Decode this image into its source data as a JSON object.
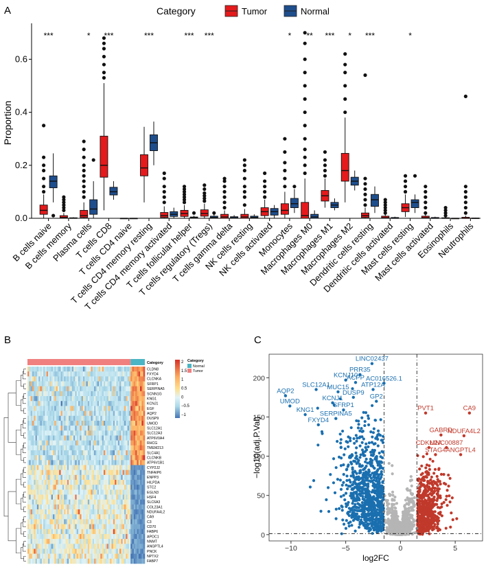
{
  "chart_data": [
    {
      "panel": "A",
      "type": "box",
      "ylabel": "Proportion",
      "ylim": [
        0,
        0.72
      ],
      "yticks": [
        0.0,
        0.2,
        0.4,
        0.6
      ],
      "yticklabels": [
        "0.0",
        "0.2",
        "0.4",
        "0.6"
      ],
      "legend_title": "Category",
      "legend": [
        {
          "name": "Tumor",
          "color": "#e41a1c"
        },
        {
          "name": "Normal",
          "color": "#1f4e8c"
        }
      ],
      "categories": [
        {
          "name": "B cells naive",
          "sig": "***",
          "tumor": {
            "q1": 0.015,
            "med": 0.03,
            "q3": 0.05,
            "lo": 0.0,
            "hi": 0.09,
            "out": [
              0.1,
              0.12,
              0.15,
              0.18,
              0.2,
              0.23,
              0.35
            ]
          },
          "normal": {
            "q1": 0.115,
            "med": 0.14,
            "q3": 0.16,
            "lo": 0.06,
            "hi": 0.245,
            "out": [
              0.01
            ]
          }
        },
        {
          "name": "B cells memory",
          "sig": "",
          "tumor": {
            "q1": 0.0,
            "med": 0.003,
            "q3": 0.01,
            "lo": 0.0,
            "hi": 0.02,
            "out": [
              0.03,
              0.04,
              0.05,
              0.06,
              0.07,
              0.08
            ]
          },
          "normal": {
            "q1": 0.0,
            "med": 0.0,
            "q3": 0.002,
            "lo": 0.0,
            "hi": 0.004,
            "out": []
          }
        },
        {
          "name": "Plasma cells",
          "sig": "*",
          "tumor": {
            "q1": 0.003,
            "med": 0.01,
            "q3": 0.03,
            "lo": 0.0,
            "hi": 0.06,
            "out": [
              0.08,
              0.1,
              0.12,
              0.14,
              0.16,
              0.18,
              0.2,
              0.23,
              0.26,
              0.29
            ]
          },
          "normal": {
            "q1": 0.015,
            "med": 0.035,
            "q3": 0.07,
            "lo": 0.0,
            "hi": 0.14,
            "out": [
              0.22
            ]
          }
        },
        {
          "name": "T cells CD8",
          "sig": "***",
          "tumor": {
            "q1": 0.155,
            "med": 0.2,
            "q3": 0.31,
            "lo": 0.03,
            "hi": 0.51,
            "out": [
              0.53,
              0.55,
              0.58,
              0.61,
              0.64,
              0.66,
              0.68
            ]
          },
          "normal": {
            "q1": 0.088,
            "med": 0.1,
            "q3": 0.117,
            "lo": 0.07,
            "hi": 0.14,
            "out": []
          }
        },
        {
          "name": "T cells CD4 naive",
          "sig": "",
          "tumor": {
            "q1": 0.0,
            "med": 0.0,
            "q3": 0.0,
            "lo": 0.0,
            "hi": 0.0,
            "out": []
          },
          "normal": {
            "q1": 0.0,
            "med": 0.0,
            "q3": 0.0,
            "lo": 0.0,
            "hi": 0.0,
            "out": []
          }
        },
        {
          "name": "T cells CD4 memory resting",
          "sig": "***",
          "tumor": {
            "q1": 0.16,
            "med": 0.19,
            "q3": 0.24,
            "lo": 0.06,
            "hi": 0.345,
            "out": []
          },
          "normal": {
            "q1": 0.255,
            "med": 0.285,
            "q3": 0.315,
            "lo": 0.2,
            "hi": 0.365,
            "out": []
          }
        },
        {
          "name": "T cells CD4 memory activated",
          "sig": "",
          "tumor": {
            "q1": 0.003,
            "med": 0.01,
            "q3": 0.022,
            "lo": 0.0,
            "hi": 0.045,
            "out": [
              0.06,
              0.08,
              0.1,
              0.12,
              0.15,
              0.17
            ]
          },
          "normal": {
            "q1": 0.007,
            "med": 0.015,
            "q3": 0.025,
            "lo": 0.0,
            "hi": 0.04,
            "out": []
          }
        },
        {
          "name": "T cells follicular helper",
          "sig": "***",
          "tumor": {
            "q1": 0.007,
            "med": 0.018,
            "q3": 0.03,
            "lo": 0.0,
            "hi": 0.05,
            "out": [
              0.06,
              0.07,
              0.08,
              0.09,
              0.1,
              0.11,
              0.12
            ]
          },
          "normal": {
            "q1": 0.0,
            "med": 0.002,
            "q3": 0.005,
            "lo": 0.0,
            "hi": 0.01,
            "out": [
              0.02
            ]
          }
        },
        {
          "name": "T cells regulatory (Tregs)",
          "sig": "***",
          "tumor": {
            "q1": 0.008,
            "med": 0.018,
            "q3": 0.032,
            "lo": 0.0,
            "hi": 0.055,
            "out": [
              0.065,
              0.075,
              0.085,
              0.095,
              0.11,
              0.125
            ]
          },
          "normal": {
            "q1": 0.0,
            "med": 0.003,
            "q3": 0.008,
            "lo": 0.0,
            "hi": 0.015,
            "out": [
              0.02
            ]
          }
        },
        {
          "name": "T cells gamma delta",
          "sig": "",
          "tumor": {
            "q1": 0.0,
            "med": 0.005,
            "q3": 0.015,
            "lo": 0.0,
            "hi": 0.03,
            "out": [
              0.04,
              0.06,
              0.08,
              0.1,
              0.12,
              0.14,
              0.15
            ]
          },
          "normal": {
            "q1": 0.0,
            "med": 0.002,
            "q3": 0.006,
            "lo": 0.0,
            "hi": 0.012,
            "out": []
          }
        },
        {
          "name": "NK cells resting",
          "sig": "",
          "tumor": {
            "q1": 0.0,
            "med": 0.005,
            "q3": 0.015,
            "lo": 0.0,
            "hi": 0.035,
            "out": [
              0.05,
              0.08,
              0.1,
              0.12,
              0.15,
              0.18,
              0.2,
              0.22
            ]
          },
          "normal": {
            "q1": 0.0,
            "med": 0.003,
            "q3": 0.008,
            "lo": 0.0,
            "hi": 0.015,
            "out": []
          }
        },
        {
          "name": "NK cells activated",
          "sig": "",
          "tumor": {
            "q1": 0.01,
            "med": 0.025,
            "q3": 0.04,
            "lo": 0.0,
            "hi": 0.07,
            "out": [
              0.08,
              0.1,
              0.12,
              0.14,
              0.17
            ]
          },
          "normal": {
            "q1": 0.012,
            "med": 0.025,
            "q3": 0.037,
            "lo": 0.0,
            "hi": 0.05,
            "out": []
          }
        },
        {
          "name": "Monocytes",
          "sig": "*",
          "tumor": {
            "q1": 0.015,
            "med": 0.03,
            "q3": 0.055,
            "lo": 0.0,
            "hi": 0.1,
            "out": [
              0.12,
              0.15,
              0.18,
              0.21,
              0.25,
              0.3
            ]
          },
          "normal": {
            "q1": 0.04,
            "med": 0.055,
            "q3": 0.075,
            "lo": 0.02,
            "hi": 0.11,
            "out": [
              0.12
            ]
          }
        },
        {
          "name": "Macrophages M0",
          "sig": "**",
          "tumor": {
            "q1": 0.0,
            "med": 0.01,
            "q3": 0.06,
            "lo": 0.0,
            "hi": 0.15,
            "out": [
              0.17,
              0.2,
              0.23,
              0.26,
              0.3,
              0.35,
              0.4,
              0.45,
              0.5,
              0.55,
              0.6,
              0.66,
              0.7
            ]
          },
          "normal": {
            "q1": 0.0,
            "med": 0.005,
            "q3": 0.015,
            "lo": 0.0,
            "hi": 0.03,
            "out": []
          }
        },
        {
          "name": "Macrophages M1",
          "sig": "***",
          "tumor": {
            "q1": 0.065,
            "med": 0.085,
            "q3": 0.105,
            "lo": 0.04,
            "hi": 0.15,
            "out": [
              0.16,
              0.18,
              0.2,
              0.22,
              0.25
            ]
          },
          "normal": {
            "q1": 0.04,
            "med": 0.05,
            "q3": 0.06,
            "lo": 0.03,
            "hi": 0.075,
            "out": []
          }
        },
        {
          "name": "Macrophages M2",
          "sig": "*",
          "tumor": {
            "q1": 0.14,
            "med": 0.18,
            "q3": 0.245,
            "lo": 0.06,
            "hi": 0.38,
            "out": [
              0.4,
              0.45,
              0.5,
              0.55,
              0.58,
              0.62
            ]
          },
          "normal": {
            "q1": 0.125,
            "med": 0.14,
            "q3": 0.155,
            "lo": 0.105,
            "hi": 0.18,
            "out": []
          }
        },
        {
          "name": "Dendritic cells resting",
          "sig": "***",
          "tumor": {
            "q1": 0.003,
            "med": 0.01,
            "q3": 0.02,
            "lo": 0.0,
            "hi": 0.04,
            "out": [
              0.05,
              0.07,
              0.09,
              0.11,
              0.13,
              0.15,
              0.54
            ]
          },
          "normal": {
            "q1": 0.045,
            "med": 0.07,
            "q3": 0.09,
            "lo": 0.02,
            "hi": 0.12,
            "out": []
          }
        },
        {
          "name": "Dendritic cells activated",
          "sig": "",
          "tumor": {
            "q1": 0.0,
            "med": 0.002,
            "q3": 0.008,
            "lo": 0.0,
            "hi": 0.015,
            "out": [
              0.02,
              0.03,
              0.04,
              0.05,
              0.06,
              0.07
            ]
          },
          "normal": {
            "q1": 0.0,
            "med": 0.0,
            "q3": 0.003,
            "lo": 0.0,
            "hi": 0.006,
            "out": []
          }
        },
        {
          "name": "Mast cells resting",
          "sig": "*",
          "tumor": {
            "q1": 0.025,
            "med": 0.04,
            "q3": 0.055,
            "lo": 0.005,
            "hi": 0.09,
            "out": [
              0.1,
              0.12,
              0.14,
              0.16
            ]
          },
          "normal": {
            "q1": 0.04,
            "med": 0.06,
            "q3": 0.07,
            "lo": 0.02,
            "hi": 0.09,
            "out": [
              0.16
            ]
          }
        },
        {
          "name": "Mast cells activated",
          "sig": "",
          "tumor": {
            "q1": 0.0,
            "med": 0.002,
            "q3": 0.008,
            "lo": 0.0,
            "hi": 0.015,
            "out": [
              0.02,
              0.04,
              0.06,
              0.08,
              0.1,
              0.12
            ]
          },
          "normal": {
            "q1": 0.0,
            "med": 0.0,
            "q3": 0.003,
            "lo": 0.0,
            "hi": 0.006,
            "out": []
          }
        },
        {
          "name": "Eosinophils",
          "sig": "",
          "tumor": {
            "q1": 0.0,
            "med": 0.0,
            "q3": 0.002,
            "lo": 0.0,
            "hi": 0.005,
            "out": [
              0.01,
              0.02,
              0.03,
              0.04
            ]
          },
          "normal": {
            "q1": 0.0,
            "med": 0.0,
            "q3": 0.0,
            "lo": 0.0,
            "hi": 0.0,
            "out": []
          }
        },
        {
          "name": "Neutrophils",
          "sig": "",
          "tumor": {
            "q1": 0.0,
            "med": 0.0,
            "q3": 0.004,
            "lo": 0.0,
            "hi": 0.01,
            "out": [
              0.02,
              0.04,
              0.06,
              0.08,
              0.1,
              0.12,
              0.46
            ]
          },
          "normal": {
            "q1": 0.0,
            "med": 0.0,
            "q3": 0.001,
            "lo": 0.0,
            "hi": 0.002,
            "out": []
          }
        }
      ]
    },
    {
      "panel": "B",
      "type": "heatmap",
      "colorbar_ticks": [
        "2",
        "1.5",
        "1",
        "0.5",
        "0",
        "−0.5",
        "−1"
      ],
      "legend_title": "Category",
      "legend": [
        {
          "name": "Normal",
          "color": "#4ab5c4"
        },
        {
          "name": "Tumor",
          "color": "#f08080"
        }
      ],
      "annotation_label": "Category",
      "genes_up_in_normal": [
        "CLDN8",
        "FXYD4",
        "CLCNKA",
        "SFRP1",
        "SERPINA5",
        "SCNN1G",
        "KNG1",
        "KCNJ1",
        "EGF",
        "AQP2",
        "DUSP9",
        "UMOD",
        "SLC12A1",
        "SLC12A3",
        "ATP6V0A4",
        "RHCG",
        "TMEM213",
        "SLC4A1",
        "CLCNKB",
        "ATP6V1B1"
      ],
      "genes_up_in_tumor": [
        "CYP2J2",
        "TNFAIP6",
        "ENPP3",
        "HILPDA",
        "STC2",
        "EGLN3",
        "HSF4",
        "SLC6A3",
        "COL23A1",
        "NDUFA4L2",
        "CA9",
        "C3",
        "CD70",
        "FABP6",
        "APOC1",
        "NNMT",
        "ANGPTL4",
        "PNCK",
        "NPTX2",
        "FABP7"
      ],
      "tumor_samples": 65,
      "normal_samples": 9
    },
    {
      "panel": "C",
      "type": "scatter",
      "xlabel": "log2FC",
      "ylabel": "−log10(adj.P.Val)",
      "xlim": [
        -12,
        7.5
      ],
      "ylim": [
        -8,
        230
      ],
      "xticks": [
        -10,
        -5,
        0,
        5
      ],
      "yticks": [
        0,
        50,
        100,
        150,
        200
      ],
      "thresholds": {
        "x": [
          -1.5,
          1.5
        ],
        "y": 1.3
      },
      "colors": {
        "down": "#1a6faf",
        "up": "#c0392b",
        "ns": "#b5b5b5"
      },
      "labels_down": [
        {
          "text": "LINC02437",
          "x": -2.6,
          "y": 218
        },
        {
          "text": "PRR35",
          "x": -3.7,
          "y": 204
        },
        {
          "text": "KCNJ10",
          "x": -5.0,
          "y": 197
        },
        {
          "text": "ACPP",
          "x": -4.1,
          "y": 194
        },
        {
          "text": "AC016526.1",
          "x": -1.5,
          "y": 193
        },
        {
          "text": "SLC12A1",
          "x": -7.7,
          "y": 185
        },
        {
          "text": "ATP12A",
          "x": -2.5,
          "y": 185
        },
        {
          "text": "MUC15",
          "x": -5.7,
          "y": 182
        },
        {
          "text": "AQP2",
          "x": -10.5,
          "y": 177
        },
        {
          "text": "DUSP9",
          "x": -4.3,
          "y": 175
        },
        {
          "text": "GP2",
          "x": -2.2,
          "y": 170
        },
        {
          "text": "UMOD",
          "x": -10.1,
          "y": 164
        },
        {
          "text": "KCNJ1",
          "x": -6.2,
          "y": 168
        },
        {
          "text": "SFRP1",
          "x": -5.2,
          "y": 159
        },
        {
          "text": "KNG1",
          "x": -8.7,
          "y": 153
        },
        {
          "text": "SERPINA5",
          "x": -5.9,
          "y": 148
        },
        {
          "text": "FXYD4",
          "x": -7.5,
          "y": 140
        }
      ],
      "labels_up": [
        {
          "text": "PVT1",
          "x": 2.3,
          "y": 155
        },
        {
          "text": "CA9",
          "x": 6.3,
          "y": 155
        },
        {
          "text": "GABRD",
          "x": 3.7,
          "y": 127
        },
        {
          "text": "NDUFA4L2",
          "x": 5.8,
          "y": 126
        },
        {
          "text": "CDKN2A",
          "x": 2.6,
          "y": 111
        },
        {
          "text": "LINC00887",
          "x": 4.2,
          "y": 111
        },
        {
          "text": "STAG4",
          "x": 3.2,
          "y": 102
        },
        {
          "text": "ANGPTL4",
          "x": 5.5,
          "y": 102
        }
      ]
    }
  ],
  "panels": {
    "a": "A",
    "b": "B",
    "c": "C"
  }
}
